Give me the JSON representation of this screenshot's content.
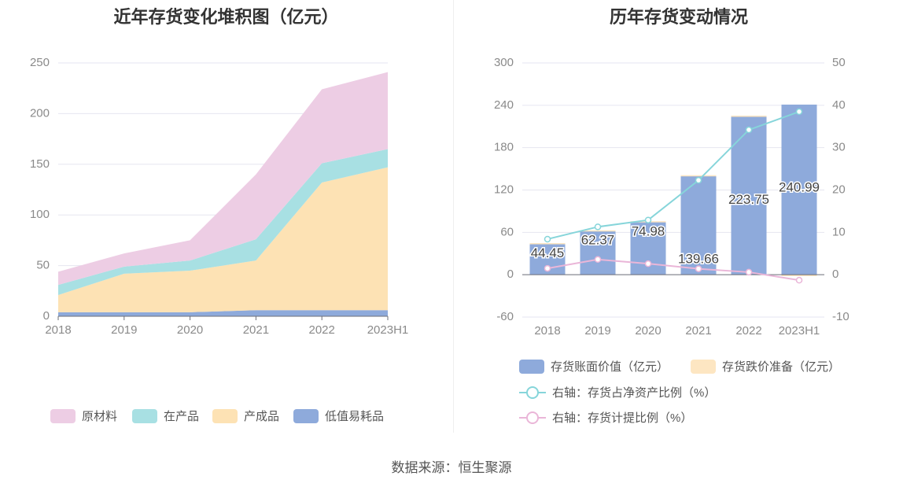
{
  "source": "数据来源：恒生聚源",
  "chart_data": [
    {
      "type": "area",
      "stacked": true,
      "title": "近年存货变化堆积图（亿元）",
      "categories": [
        "2018",
        "2019",
        "2020",
        "2021",
        "2022",
        "2023H1"
      ],
      "ylim": [
        0,
        250
      ],
      "yticks": [
        "0",
        "50",
        "100",
        "150",
        "200",
        "250"
      ],
      "yticks_values": [
        0,
        50,
        100,
        150,
        200,
        250
      ],
      "legend_position": "bottom",
      "series": [
        {
          "name": "低值易耗品",
          "color": "#8eaadb",
          "values": [
            4,
            4,
            4,
            6,
            6,
            6
          ]
        },
        {
          "name": "产成品",
          "color": "#fde2b4",
          "values": [
            17,
            38,
            41,
            49,
            126,
            141
          ]
        },
        {
          "name": "在产品",
          "color": "#a8e0e3",
          "values": [
            10,
            7,
            10,
            21,
            19,
            18
          ]
        },
        {
          "name": "原材料",
          "color": "#edcde4",
          "values": [
            13,
            13,
            20,
            64,
            73,
            76
          ]
        }
      ]
    },
    {
      "type": "bar",
      "title": "历年存货变动情况",
      "categories": [
        "2018",
        "2019",
        "2020",
        "2021",
        "2022",
        "2023H1"
      ],
      "ylim_left": [
        -60,
        300
      ],
      "yticks_left": [
        "-60",
        "0",
        "60",
        "120",
        "180",
        "240",
        "300"
      ],
      "yticks_left_values": [
        -60,
        0,
        60,
        120,
        180,
        240,
        300
      ],
      "ylim_right": [
        -10,
        50
      ],
      "yticks_right": [
        "-10",
        "0",
        "10",
        "20",
        "30",
        "40",
        "50"
      ],
      "yticks_right_values": [
        -10,
        0,
        10,
        20,
        30,
        40,
        50
      ],
      "legend_position": "bottom",
      "bar_series": [
        {
          "name": "存货账面价值（亿元）",
          "color": "#8eaadb",
          "values": [
            44.45,
            62.37,
            74.98,
            139.66,
            223.75,
            240.99
          ],
          "labels": [
            "44.45",
            "62.37",
            "74.98",
            "139.66",
            "223.75",
            "240.99"
          ]
        },
        {
          "name": "存货跌价准备（亿元）",
          "color": "#fde6c2",
          "values": [
            0.3,
            0.5,
            0.8,
            1.3,
            1.6,
            -2.0
          ]
        }
      ],
      "line_series": [
        {
          "name": "右轴：存货占净资产比例（%）",
          "color": "#86d5da",
          "axis": "right",
          "values": [
            8.4,
            11.3,
            12.9,
            22.3,
            34.2,
            38.5
          ]
        },
        {
          "name": "右轴：存货计提比例（%）",
          "color": "#eab6d8",
          "axis": "right",
          "values": [
            1.5,
            3.6,
            2.6,
            1.4,
            0.6,
            -1.3
          ]
        }
      ]
    }
  ]
}
